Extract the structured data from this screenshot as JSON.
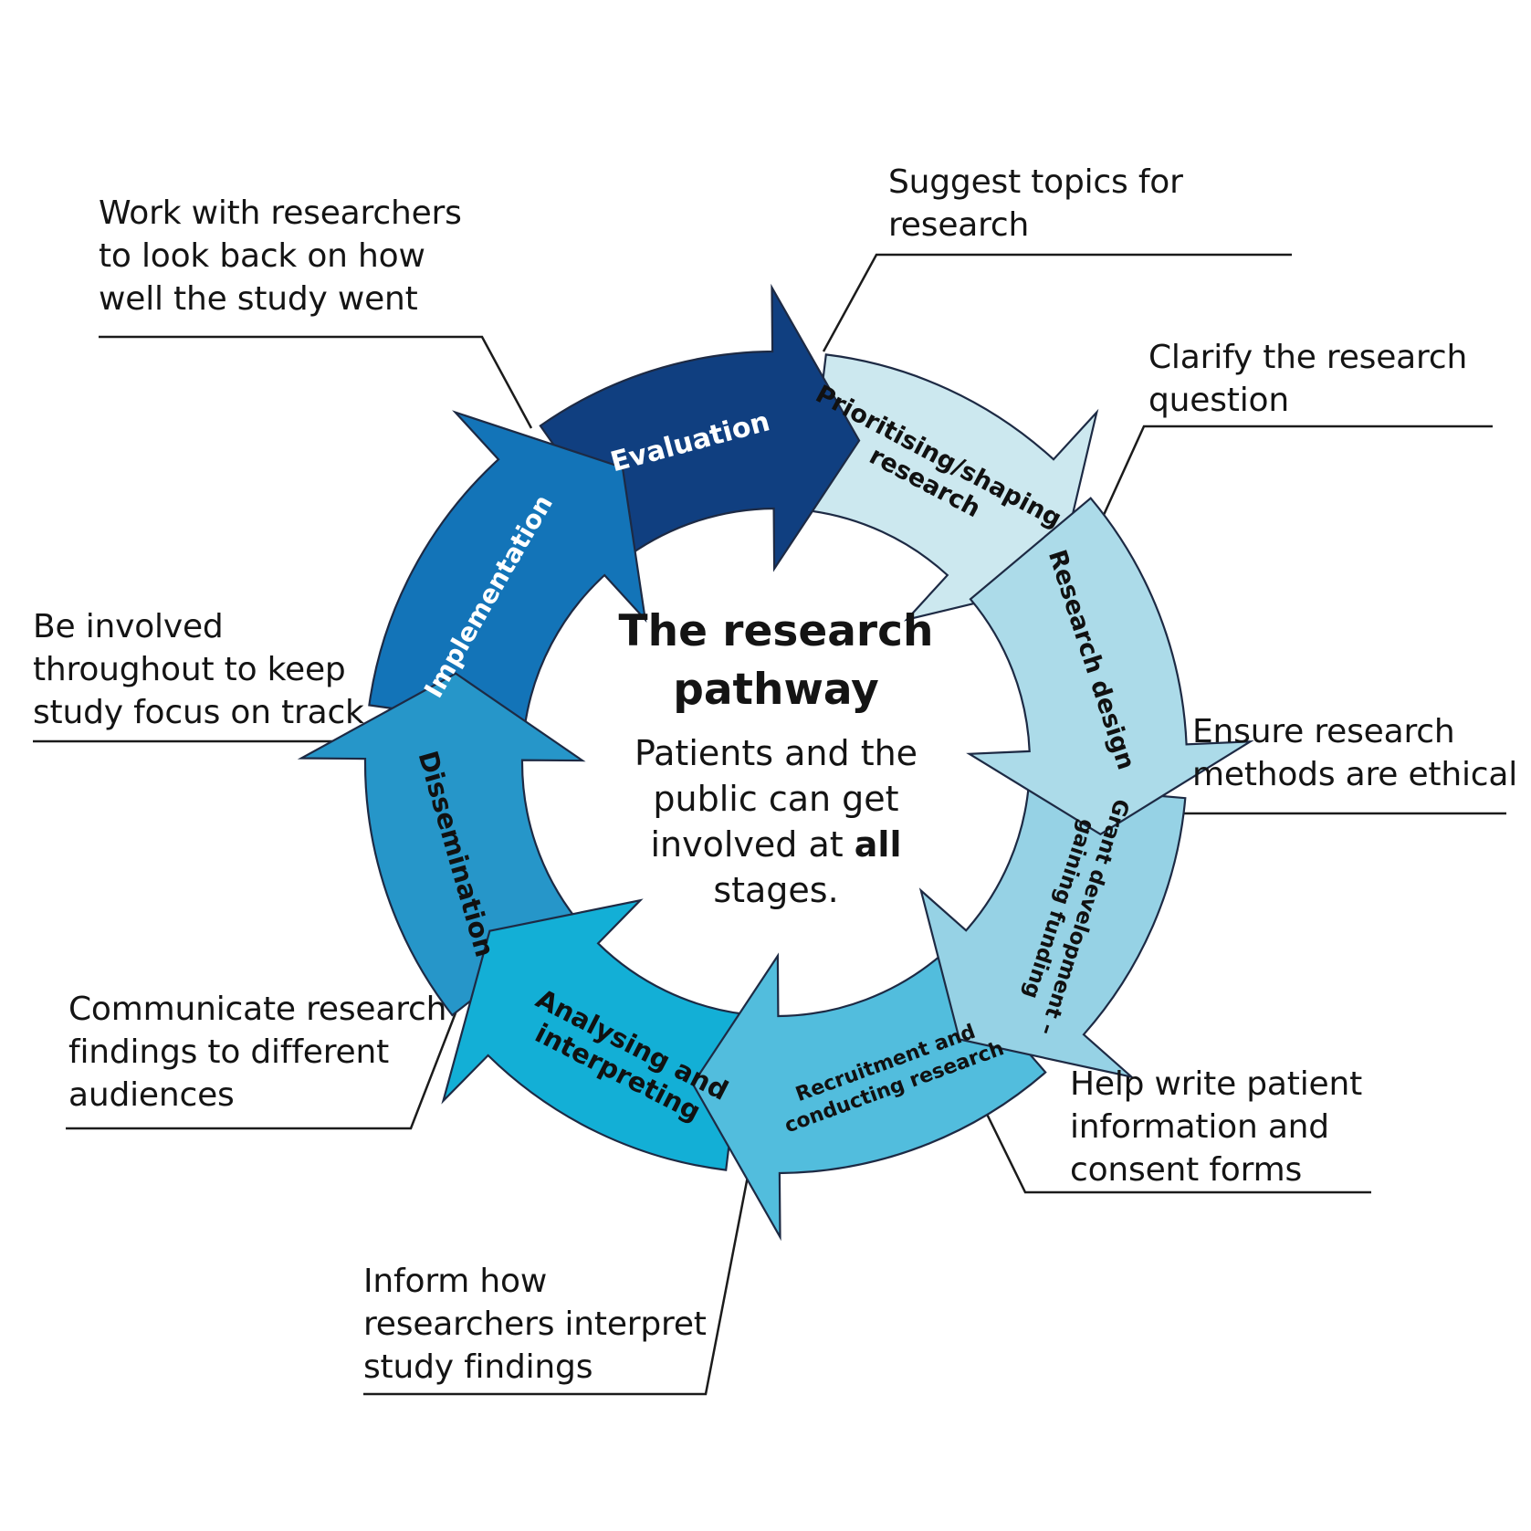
{
  "center": {
    "title_line1": "The research",
    "title_line2": "pathway",
    "body_line1": "Patients and the",
    "body_line2": "public can get",
    "body_line3_prefix": "involved at ",
    "body_line3_bold": "all",
    "body_line4": "stages."
  },
  "stages": [
    {
      "id": "prioritising",
      "lines": [
        "Prioritising/shaping",
        "research"
      ],
      "fill": "#cce8ef",
      "text_color": "#111111"
    },
    {
      "id": "research-design",
      "lines": [
        "Research design"
      ],
      "fill": "#acdbe9",
      "text_color": "#111111"
    },
    {
      "id": "grant",
      "lines": [
        "Grant development –",
        "gaining funding"
      ],
      "fill": "#96d2e5",
      "text_color": "#111111"
    },
    {
      "id": "recruitment",
      "lines": [
        "Recruitment and",
        "conducting research"
      ],
      "fill": "#52bddd",
      "text_color": "#111111"
    },
    {
      "id": "analysing",
      "lines": [
        "Analysing and",
        "interpreting"
      ],
      "fill": "#13afd6",
      "text_color": "#111111"
    },
    {
      "id": "dissemination",
      "lines": [
        "Dissemination"
      ],
      "fill": "#2696c9",
      "text_color": "#111111"
    },
    {
      "id": "implementation",
      "lines": [
        "Implementation"
      ],
      "fill": "#1374b8",
      "text_color": "#ffffff"
    },
    {
      "id": "evaluation",
      "lines": [
        "Evaluation"
      ],
      "fill": "#103f80",
      "text_color": "#ffffff"
    }
  ],
  "notes": {
    "suggest": [
      "Suggest topics for",
      "research"
    ],
    "clarify": [
      "Clarify the research",
      "question"
    ],
    "ethical": [
      "Ensure research",
      "methods are ethical"
    ],
    "patient_info": [
      "Help write patient",
      "information and",
      "consent forms"
    ],
    "inform": [
      "Inform how",
      "researchers interpret",
      "study findings"
    ],
    "communicate": [
      "Communicate research",
      "findings to different",
      "audiences"
    ],
    "involved": [
      "Be involved",
      "throughout to keep",
      "study focus on track"
    ],
    "look_back": [
      "Work with researchers",
      "to look back on how",
      "well the study went"
    ]
  }
}
